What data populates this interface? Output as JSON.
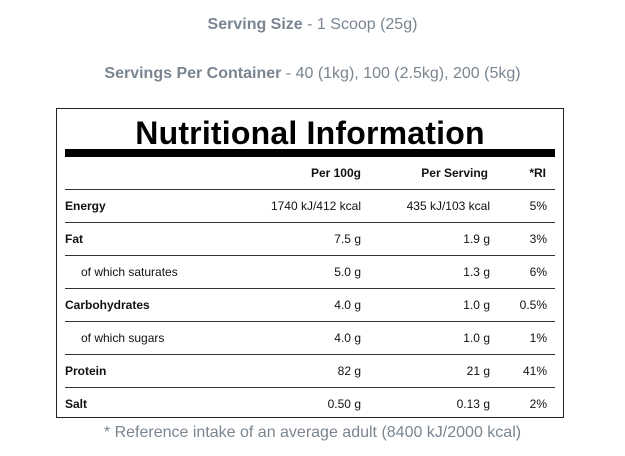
{
  "serving_size": {
    "label": "Serving Size",
    "sep": " - ",
    "value": "1 Scoop (25g)"
  },
  "servings_per_container": {
    "label": "Servings Per Container",
    "sep": " - ",
    "value": "40 (1kg), 100 (2.5kg), 200 (5kg)"
  },
  "table": {
    "title": "Nutritional Information",
    "headers": {
      "per100": "Per 100g",
      "per_serving": "Per Serving",
      "ri": "*RI"
    },
    "rows": [
      {
        "label": "Energy",
        "per100": "1740 kJ/412 kcal",
        "per_serving": "435 kJ/103 kcal",
        "ri": "5%"
      },
      {
        "label": "Fat",
        "per100": "7.5 g",
        "per_serving": "1.9 g",
        "ri": "3%"
      },
      {
        "label": "of which saturates",
        "per100": "5.0 g",
        "per_serving": "1.3 g",
        "ri": "6%"
      },
      {
        "label": "Carbohydrates",
        "per100": "4.0 g",
        "per_serving": "1.0 g",
        "ri": "0.5%"
      },
      {
        "label": "of which sugars",
        "per100": "4.0 g",
        "per_serving": "1.0 g",
        "ri": "1%"
      },
      {
        "label": "Protein",
        "per100": "82 g",
        "per_serving": "21 g",
        "ri": "41%"
      },
      {
        "label": "Salt",
        "per100": "0.50 g",
        "per_serving": "0.13 g",
        "ri": "2%"
      }
    ]
  },
  "footnote": "* Reference intake of an average adult (8400 kJ/2000 kcal)"
}
